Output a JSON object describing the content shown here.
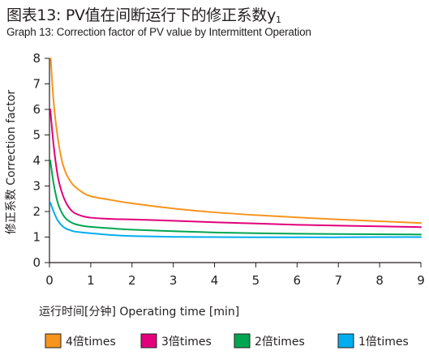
{
  "title": {
    "main": "图表13:  PV值在间断运行下的修正系数y",
    "sub": "1"
  },
  "subtitle": "Graph 13: Correction factor of  PV value by Intermittent Operation",
  "chart_data": {
    "type": "line",
    "xlabel": "运行时间[分钟] Operating time [min]",
    "ylabel": "修正系数 Correction factor",
    "xlim": [
      0,
      9
    ],
    "ylim": [
      0,
      8
    ],
    "xticks": [
      "0",
      "1",
      "2",
      "3",
      "4",
      "5",
      "6",
      "7",
      "8",
      "9"
    ],
    "yticks": [
      "0",
      "1",
      "2",
      "3",
      "4",
      "5",
      "6",
      "7",
      "8"
    ],
    "grid": false,
    "legend_position": "bottom",
    "series": [
      {
        "name": "4倍times",
        "color": "#f7941d",
        "x": [
          0.03,
          0.1,
          0.2,
          0.3,
          0.4,
          0.5,
          0.6,
          0.8,
          1,
          1.5,
          2,
          3,
          4,
          5,
          6,
          7,
          8,
          9
        ],
        "y": [
          8.0,
          6.3,
          4.9,
          4.0,
          3.5,
          3.2,
          3.0,
          2.75,
          2.6,
          2.45,
          2.32,
          2.12,
          1.97,
          1.86,
          1.77,
          1.69,
          1.62,
          1.55
        ]
      },
      {
        "name": "3倍times",
        "color": "#e2007a",
        "x": [
          0.02,
          0.1,
          0.2,
          0.3,
          0.4,
          0.5,
          0.6,
          0.8,
          1,
          1.5,
          2,
          3,
          4,
          5,
          6,
          7,
          8,
          9
        ],
        "y": [
          6.0,
          4.6,
          3.4,
          2.75,
          2.35,
          2.1,
          1.95,
          1.82,
          1.76,
          1.71,
          1.69,
          1.64,
          1.58,
          1.53,
          1.48,
          1.45,
          1.42,
          1.39
        ]
      },
      {
        "name": "2倍times",
        "color": "#00a651",
        "x": [
          0.02,
          0.1,
          0.2,
          0.3,
          0.4,
          0.5,
          0.6,
          0.8,
          1,
          1.5,
          2,
          3,
          4,
          5,
          6,
          7,
          8,
          9
        ],
        "y": [
          4.0,
          3.1,
          2.35,
          1.95,
          1.72,
          1.6,
          1.52,
          1.44,
          1.4,
          1.34,
          1.29,
          1.23,
          1.18,
          1.15,
          1.13,
          1.12,
          1.11,
          1.1
        ]
      },
      {
        "name": "1倍times",
        "color": "#00aeef",
        "x": [
          0.02,
          0.1,
          0.2,
          0.3,
          0.4,
          0.5,
          0.6,
          0.8,
          1,
          1.5,
          2,
          3,
          4,
          5,
          6,
          7,
          8,
          9
        ],
        "y": [
          2.35,
          2.0,
          1.65,
          1.45,
          1.33,
          1.27,
          1.22,
          1.18,
          1.15,
          1.08,
          1.04,
          1.01,
          1.0,
          0.99,
          0.99,
          0.99,
          1.0,
          1.0
        ]
      }
    ]
  }
}
